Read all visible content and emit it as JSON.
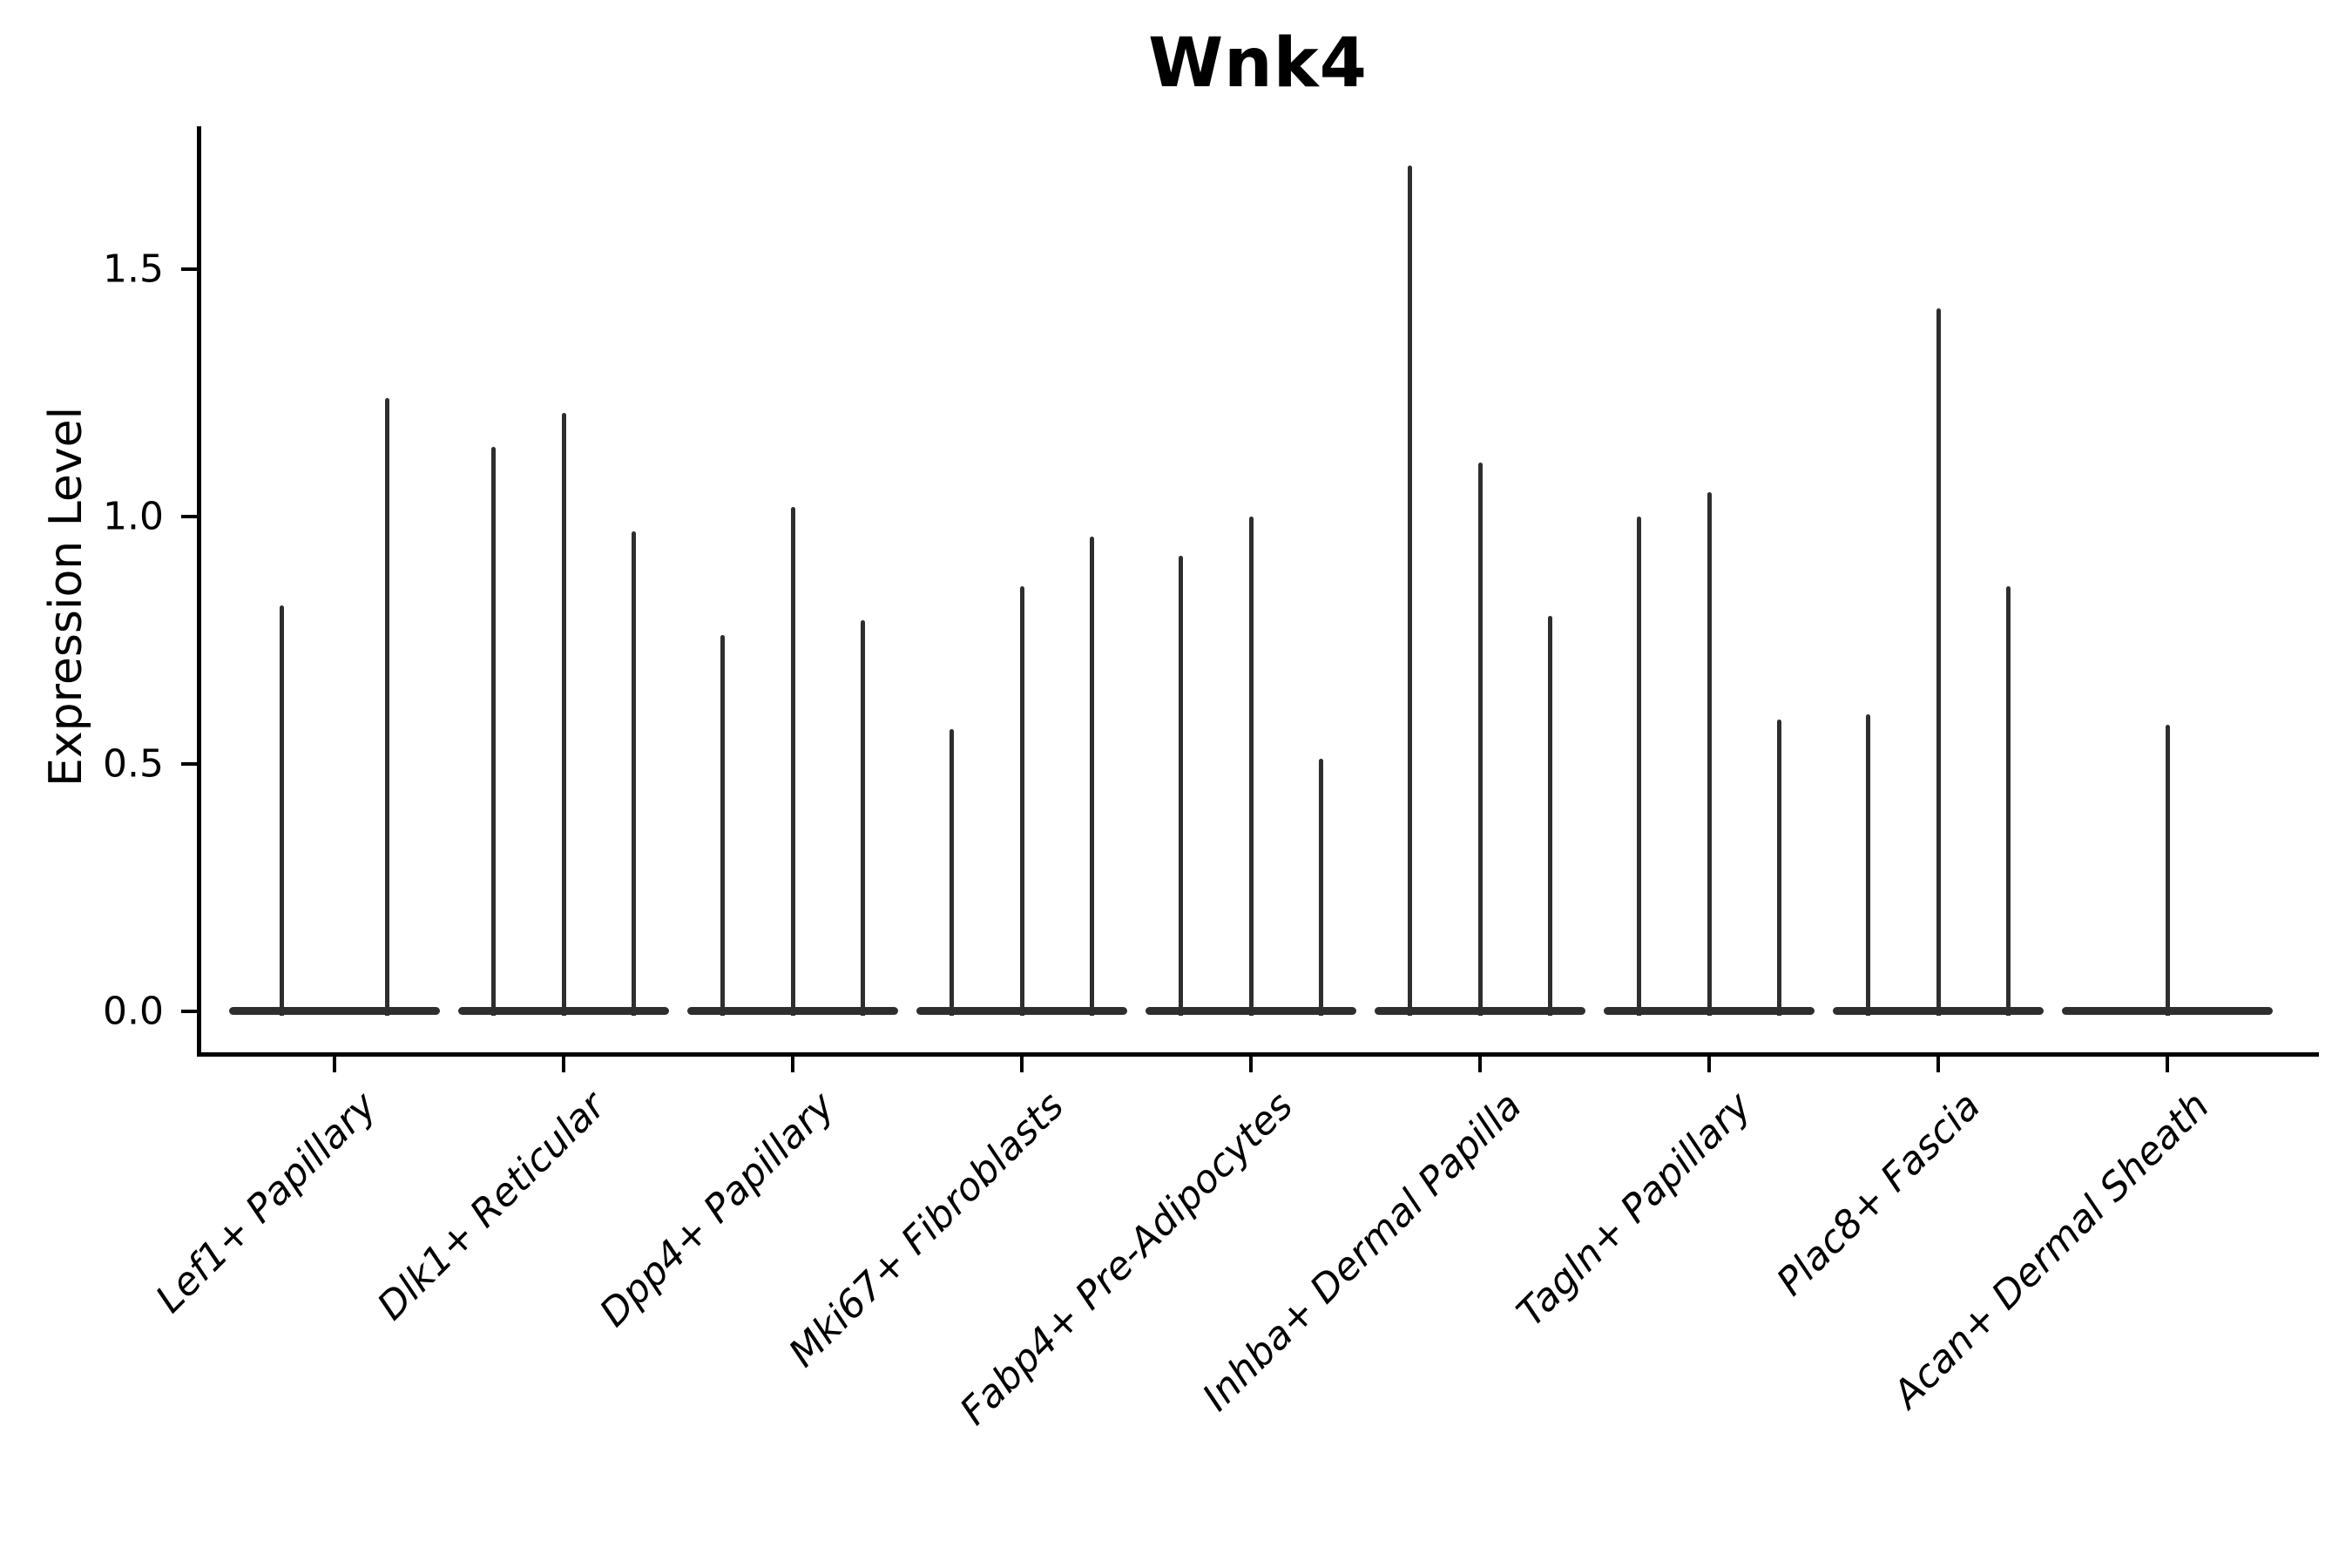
{
  "chart_data": {
    "type": "violin",
    "title": "Wnk4",
    "xlabel": "",
    "ylabel": "Expression Level",
    "ylim": [
      -0.08,
      1.79
    ],
    "grid": false,
    "legend": "none",
    "yticks": [
      {
        "label": "0.0",
        "value": 0.0
      },
      {
        "label": "0.5",
        "value": 0.5
      },
      {
        "label": "1.0",
        "value": 1.0
      },
      {
        "label": "1.5",
        "value": 1.5
      }
    ],
    "categories": [
      "Lef1+ Papillary",
      "Dlk1+ Reticular",
      "Dpp4+ Papillary",
      "Mki67+ Fibroblasts",
      "Fabp4+ Pre-Adipocytes",
      "Inhba+ Dermal Papilla",
      "Tagln+ Papillary",
      "Plac8+ Fascia",
      "Acan+ Dermal Sheath"
    ],
    "baseline_value": 0.0,
    "groups": [
      {
        "label": "Lef1+ Papillary",
        "spikes": [
          {
            "pos": 0.25,
            "height": 0.82
          },
          {
            "pos": 0.75,
            "height": 1.24
          }
        ]
      },
      {
        "label": "Dlk1+ Reticular",
        "spikes": [
          {
            "pos": 0.167,
            "height": 1.14
          },
          {
            "pos": 0.5,
            "height": 1.21
          },
          {
            "pos": 0.833,
            "height": 0.97
          }
        ]
      },
      {
        "label": "Dpp4+ Papillary",
        "spikes": [
          {
            "pos": 0.167,
            "height": 0.76
          },
          {
            "pos": 0.5,
            "height": 1.02
          },
          {
            "pos": 0.833,
            "height": 0.79
          }
        ]
      },
      {
        "label": "Mki67+ Fibroblasts",
        "spikes": [
          {
            "pos": 0.167,
            "height": 0.57
          },
          {
            "pos": 0.5,
            "height": 0.86
          },
          {
            "pos": 0.833,
            "height": 0.96
          }
        ]
      },
      {
        "label": "Fabp4+ Pre-Adipocytes",
        "spikes": [
          {
            "pos": 0.167,
            "height": 0.92
          },
          {
            "pos": 0.5,
            "height": 1.0
          },
          {
            "pos": 0.833,
            "height": 0.51
          }
        ]
      },
      {
        "label": "Inhba+ Dermal Papilla",
        "spikes": [
          {
            "pos": 0.167,
            "height": 1.71
          },
          {
            "pos": 0.5,
            "height": 1.11
          },
          {
            "pos": 0.833,
            "height": 0.8
          }
        ]
      },
      {
        "label": "Tagln+ Papillary",
        "spikes": [
          {
            "pos": 0.167,
            "height": 1.0
          },
          {
            "pos": 0.5,
            "height": 1.05
          },
          {
            "pos": 0.833,
            "height": 0.59
          }
        ]
      },
      {
        "label": "Plac8+ Fascia",
        "spikes": [
          {
            "pos": 0.167,
            "height": 0.6
          },
          {
            "pos": 0.5,
            "height": 1.42
          },
          {
            "pos": 0.833,
            "height": 0.86
          }
        ]
      },
      {
        "label": "Acan+ Dermal Sheath",
        "spikes": [
          {
            "pos": 0.5,
            "height": 0.58
          }
        ]
      }
    ],
    "colors": {
      "violin": "#2e2e2e",
      "axis": "#000000",
      "text": "#000000",
      "background": "#ffffff"
    }
  }
}
